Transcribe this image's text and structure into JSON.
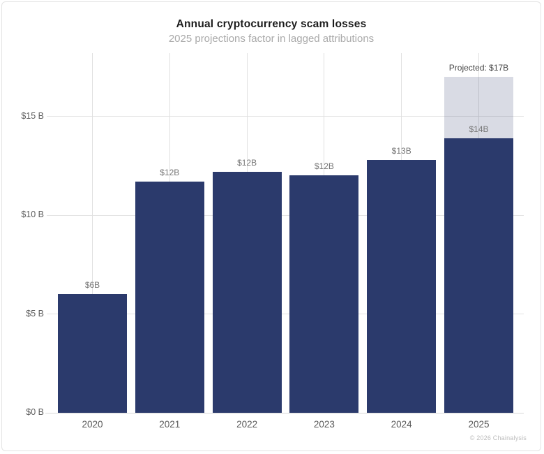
{
  "header": {
    "title": "Annual cryptocurrency scam losses",
    "subtitle": "2025 projections factor in lagged attributions"
  },
  "footer": {
    "credit": "© 2026 Chainalysis"
  },
  "colors": {
    "bar": "#2b3a6c",
    "bar_projected": "rgba(43, 58, 108, 0.18)",
    "grid": "#e3e3e3",
    "axis_line": "#d7d7d7"
  },
  "chart_data": {
    "type": "bar",
    "title": "Annual cryptocurrency scam losses",
    "subtitle": "2025 projections factor in lagged attributions",
    "categories": [
      "2020",
      "2021",
      "2022",
      "2023",
      "2024",
      "2025"
    ],
    "values": [
      6.0,
      11.7,
      12.2,
      12.0,
      12.8,
      13.9
    ],
    "bar_labels": [
      "$6B",
      "$12B",
      "$12B",
      "$12B",
      "$13B",
      "$14B"
    ],
    "projected": {
      "category": "2025",
      "total": 17.0,
      "label": "Projected: $17B"
    },
    "xlabel": "",
    "ylabel": "",
    "ylim": [
      0,
      18.2
    ],
    "yticks": [
      {
        "value": 0,
        "label": "$0 B"
      },
      {
        "value": 5,
        "label": "$5 B"
      },
      {
        "value": 10,
        "label": "$10 B"
      },
      {
        "value": 15,
        "label": "$15 B"
      }
    ],
    "grid": true,
    "legend": false,
    "units": "billions USD"
  }
}
